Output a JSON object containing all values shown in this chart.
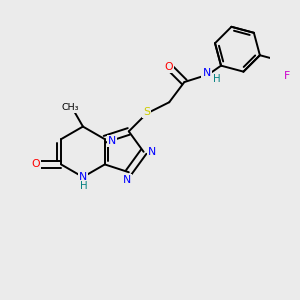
{
  "bg_color": "#ebebeb",
  "colors": {
    "N": "#0000ff",
    "O": "#ff0000",
    "S": "#cccc00",
    "F": "#cc00cc",
    "H": "#008080",
    "bond": "#000000"
  },
  "figsize": [
    3.0,
    3.0
  ],
  "dpi": 100
}
